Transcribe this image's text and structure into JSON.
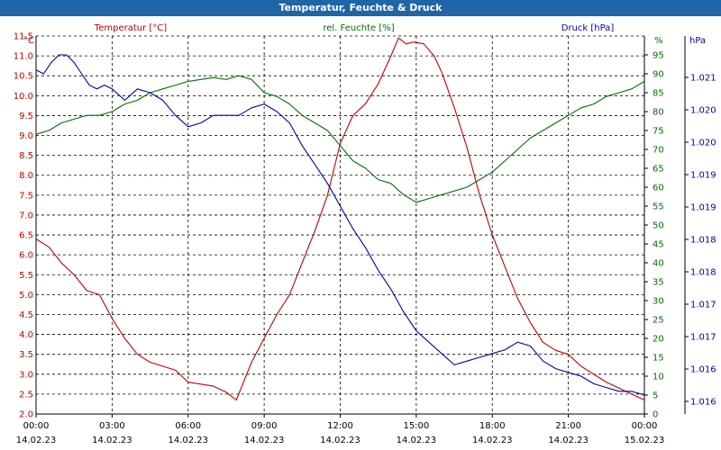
{
  "window": {
    "title": "Temperatur, Feuchte & Druck"
  },
  "colors": {
    "temperature": "#c00000",
    "humidity": "#007000",
    "pressure": "#0000b0",
    "titlebar": "#1f65a8"
  },
  "chart_data": {
    "type": "line",
    "title": "Temperatur, Feuchte & Druck",
    "x_ticks": [
      "00:00",
      "03:00",
      "06:00",
      "09:00",
      "12:00",
      "15:00",
      "18:00",
      "21:00",
      "00:00"
    ],
    "x_dates": [
      "14.02.23",
      "14.02.23",
      "14.02.23",
      "14.02.23",
      "14.02.23",
      "14.02.23",
      "14.02.23",
      "14.02.23",
      "15.02.23"
    ],
    "grid": true,
    "axes": {
      "left": {
        "label": "Temperatur [°C]",
        "unit": "°C",
        "min": 2.0,
        "max": 11.5,
        "ticks": [
          "2.0",
          "2.5",
          "3.0",
          "3.5",
          "4.0",
          "4.5",
          "5.0",
          "5.5",
          "6.0",
          "6.5",
          "7.0",
          "7.5",
          "8.0",
          "8.5",
          "9.0",
          "9.5",
          "10.0",
          "10.5",
          "11.0",
          "11.5"
        ]
      },
      "middle": {
        "label": "rel. Feuchte [%]",
        "unit": "%",
        "min": 0,
        "max": 100,
        "ticks": [
          "0",
          "5",
          "10",
          "15",
          "20",
          "25",
          "30",
          "35",
          "40",
          "45",
          "50",
          "55",
          "60",
          "65",
          "70",
          "75",
          "80",
          "85",
          "90",
          "95"
        ]
      },
      "right": {
        "label": "Druck [hPa]",
        "unit": "hPa",
        "ticks": [
          "1.021",
          "1.020",
          "1.020",
          "1.019",
          "1.019",
          "1.018",
          "1.018",
          "1.017",
          "1.017",
          "1.016",
          "1.016"
        ]
      }
    },
    "series": [
      {
        "name": "Temperatur [°C]",
        "axis": "left",
        "x": [
          0,
          0.5,
          1,
          1.5,
          2,
          2.5,
          3,
          3.5,
          4,
          4.5,
          5,
          5.5,
          6,
          6.5,
          7,
          7.5,
          7.9,
          8.25,
          8.5,
          9,
          9.5,
          10,
          10.5,
          11,
          11.5,
          12,
          12.5,
          13,
          13.5,
          14,
          14.3,
          14.6,
          14.9,
          15.3,
          15.7,
          16,
          16.5,
          17,
          17.5,
          18,
          18.5,
          19,
          19.5,
          20,
          20.5,
          21,
          21.5,
          22,
          22.5,
          23,
          23.5,
          24
        ],
        "y": [
          6.4,
          6.2,
          5.8,
          5.5,
          5.1,
          5.0,
          4.4,
          3.9,
          3.5,
          3.3,
          3.2,
          3.1,
          2.8,
          2.75,
          2.7,
          2.55,
          2.35,
          2.9,
          3.3,
          3.9,
          4.5,
          5.0,
          5.8,
          6.6,
          7.5,
          8.8,
          9.5,
          9.8,
          10.3,
          11.0,
          11.45,
          11.3,
          11.35,
          11.3,
          11.0,
          10.6,
          9.7,
          8.7,
          7.5,
          6.5,
          5.7,
          4.9,
          4.3,
          3.8,
          3.6,
          3.5,
          3.2,
          3.0,
          2.8,
          2.65,
          2.5,
          2.35
        ]
      },
      {
        "name": "rel. Feuchte [%]",
        "axis": "middle",
        "x": [
          0,
          0.5,
          1,
          1.5,
          2,
          2.5,
          3,
          3.5,
          4,
          4.5,
          5,
          5.5,
          6,
          6.5,
          7,
          7.5,
          8,
          8.5,
          9,
          9.5,
          10,
          10.5,
          11,
          11.5,
          12,
          12.5,
          13,
          13.5,
          14,
          14.5,
          15,
          15.5,
          16,
          16.5,
          17,
          17.5,
          18,
          18.5,
          19,
          19.5,
          20,
          20.5,
          21,
          21.5,
          22,
          22.5,
          23,
          23.5,
          24
        ],
        "y": [
          74,
          75,
          77,
          78,
          79,
          79,
          80,
          82,
          83,
          85,
          86,
          87,
          88,
          88.5,
          89,
          88.5,
          89.5,
          88.5,
          85,
          84,
          82,
          79,
          77,
          75,
          71,
          67,
          65,
          62,
          61,
          58,
          56,
          57,
          58,
          59,
          60,
          62,
          64,
          67,
          70,
          73,
          75,
          77,
          79,
          81,
          82,
          84,
          85,
          86,
          88
        ]
      },
      {
        "name": "Druck [hPa]",
        "axis": "right",
        "scale": "relative 0-100",
        "x": [
          0,
          0.3,
          0.6,
          0.9,
          1.2,
          1.5,
          1.8,
          2.1,
          2.4,
          2.7,
          3,
          3.5,
          4,
          4.5,
          5,
          5.5,
          6,
          6.5,
          7,
          7.5,
          8,
          8.5,
          9,
          9.5,
          10,
          10.5,
          11,
          11.5,
          12,
          12.5,
          13,
          13.5,
          14,
          14.5,
          15,
          15.5,
          16,
          16.5,
          17,
          17.5,
          18,
          18.5,
          19,
          19.5,
          20,
          20.5,
          21,
          21.5,
          22,
          22.5,
          23,
          23.5,
          24
        ],
        "y": [
          91,
          90,
          93,
          95,
          95,
          93,
          90,
          87,
          86,
          87,
          86,
          83,
          86,
          85,
          83,
          79,
          76,
          77,
          79,
          79,
          79,
          81,
          82,
          80,
          77,
          71,
          66,
          61,
          55,
          49,
          44,
          38,
          33,
          27,
          22,
          19,
          16,
          13,
          14,
          15,
          16,
          17,
          19,
          18,
          14,
          12,
          11,
          10,
          8,
          7,
          6,
          6,
          5
        ]
      }
    ]
  }
}
